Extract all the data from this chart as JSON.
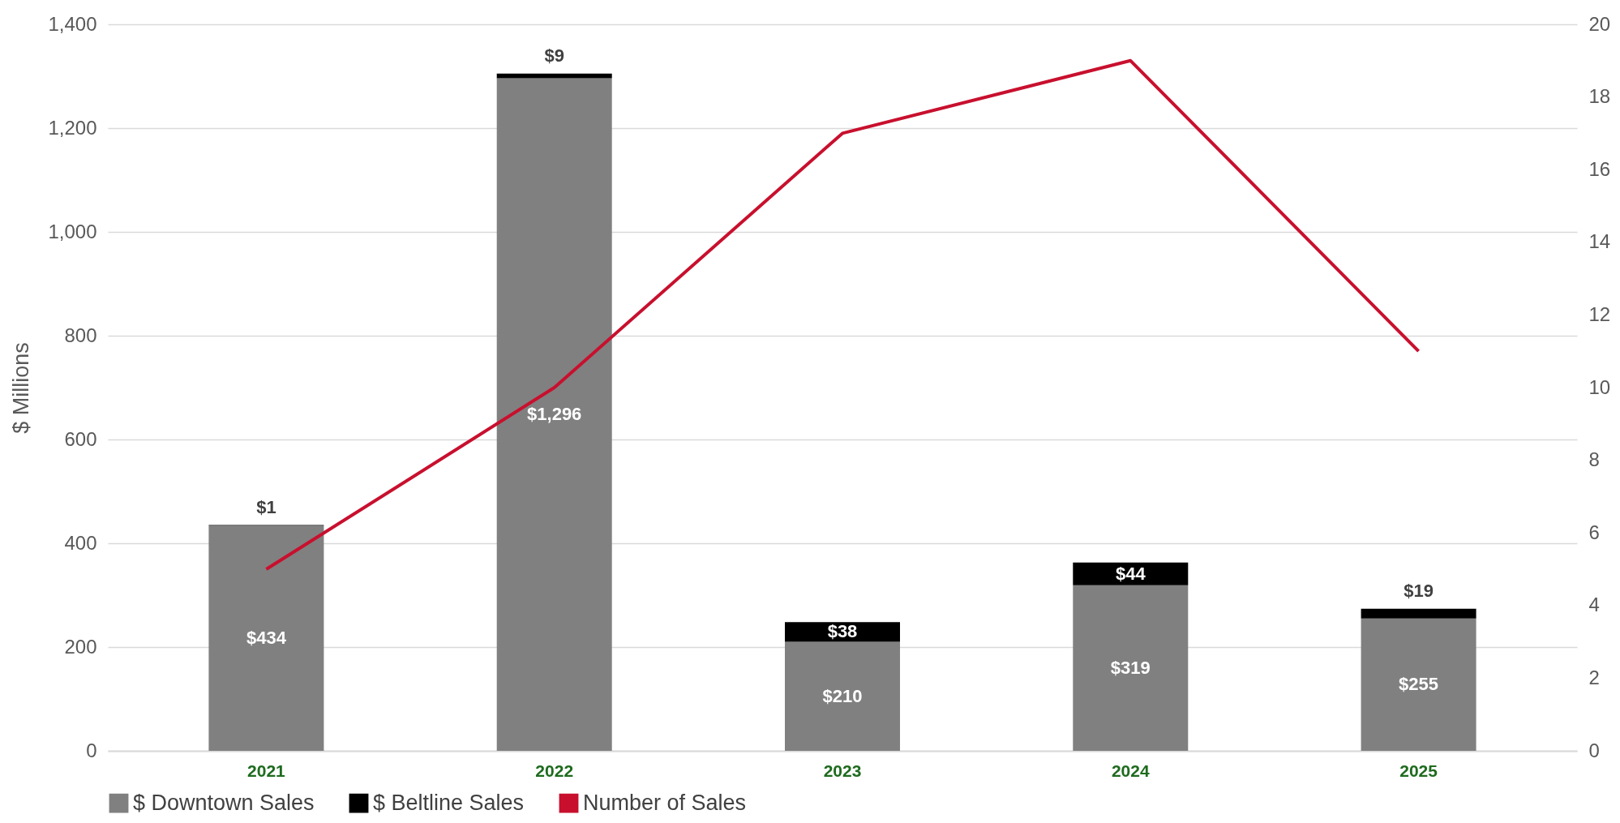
{
  "chart_data": {
    "type": "bar",
    "stacked": true,
    "ylabel": "$ Millions",
    "categories": [
      "2021",
      "2022",
      "2023",
      "2024",
      "2025"
    ],
    "series": [
      {
        "name": "$ Downtown Sales",
        "color": "#808080",
        "values": [
          434,
          1296,
          210,
          319,
          255
        ],
        "value_labels": [
          "$434",
          "$1,296",
          "$210",
          "$319",
          "$255"
        ]
      },
      {
        "name": "$ Beltline Sales",
        "color": "#000000",
        "values": [
          1,
          9,
          38,
          44,
          19
        ],
        "value_labels": [
          "$1",
          "$9",
          "$38",
          "$44",
          "$19"
        ]
      },
      {
        "name": "Number of Sales",
        "type": "line",
        "axis": "y2",
        "color": "#c8102e",
        "values": [
          5,
          10,
          17,
          19,
          11
        ]
      }
    ],
    "ylim": [
      0,
      1400
    ],
    "yticks": [
      0,
      200,
      400,
      600,
      800,
      {
        "value": 1000,
        "label": "1,000"
      },
      {
        "value": 1200,
        "label": "1,200"
      },
      {
        "value": 1400,
        "label": "1,400"
      }
    ],
    "y2lim": [
      0,
      20
    ],
    "y2ticks": [
      0,
      2,
      4,
      6,
      8,
      10,
      12,
      14,
      16,
      18,
      20
    ],
    "grid": "y",
    "legend": "bottom"
  }
}
